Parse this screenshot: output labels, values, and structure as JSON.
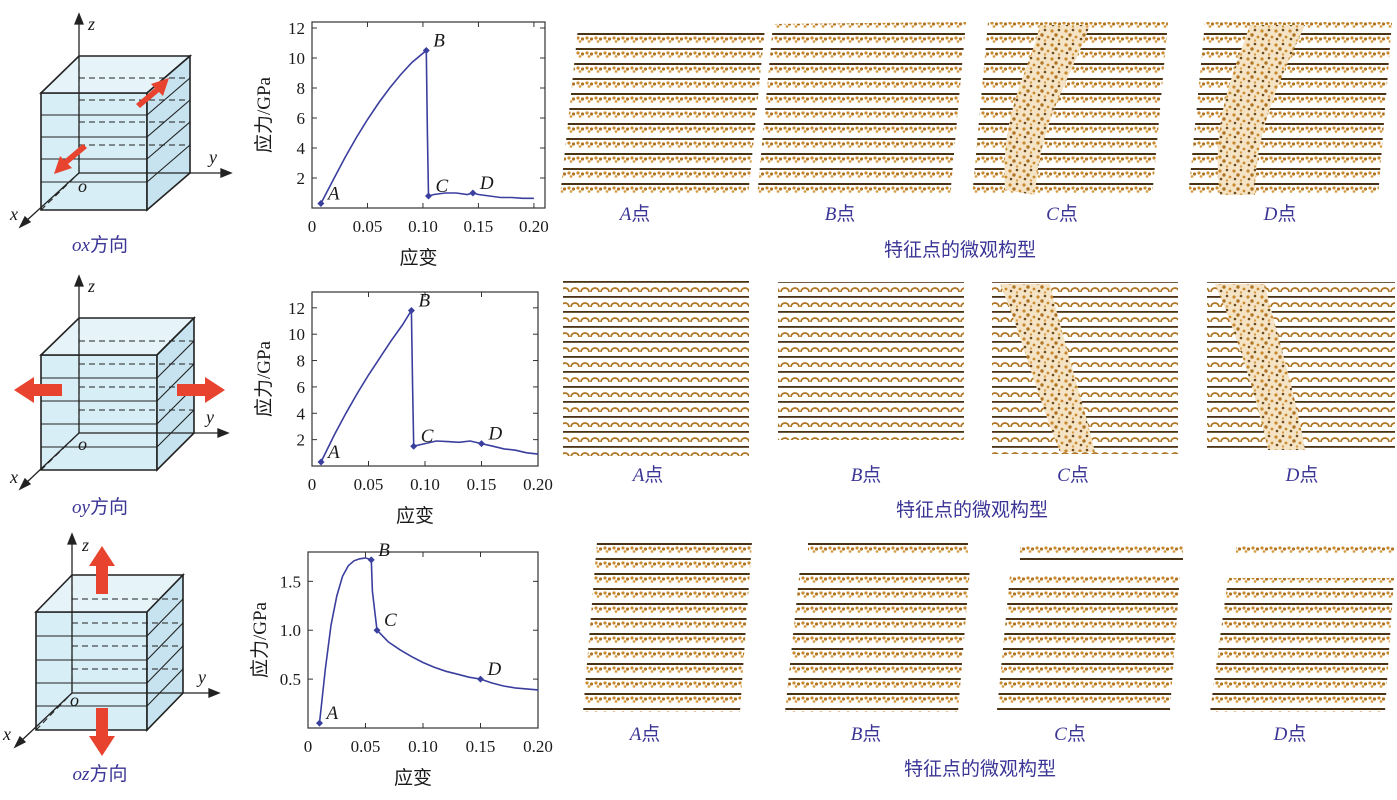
{
  "rows": [
    {
      "direction_prefix": "ox",
      "direction_suffix": "方向",
      "cube_letters": {
        "x": "x",
        "y": "y",
        "z": "z",
        "o": "o"
      },
      "snapshot_caption": "特征点的微观构型",
      "snapshots": [
        {
          "letter": "A",
          "suffix": "点"
        },
        {
          "letter": "B",
          "suffix": "点"
        },
        {
          "letter": "C",
          "suffix": "点"
        },
        {
          "letter": "D",
          "suffix": "点"
        }
      ]
    },
    {
      "direction_prefix": "oy",
      "direction_suffix": "方向",
      "cube_letters": {
        "x": "x",
        "y": "y",
        "z": "z",
        "o": "o"
      },
      "snapshot_caption": "特征点的微观构型",
      "snapshots": [
        {
          "letter": "A",
          "suffix": "点"
        },
        {
          "letter": "B",
          "suffix": "点"
        },
        {
          "letter": "C",
          "suffix": "点"
        },
        {
          "letter": "D",
          "suffix": "点"
        }
      ]
    },
    {
      "direction_prefix": "oz",
      "direction_suffix": "方向",
      "cube_letters": {
        "x": "x",
        "y": "y",
        "z": "z",
        "o": "o"
      },
      "snapshot_caption": "特征点的微观构型",
      "snapshots": [
        {
          "letter": "A",
          "suffix": "点"
        },
        {
          "letter": "B",
          "suffix": "点"
        },
        {
          "letter": "C",
          "suffix": "点"
        },
        {
          "letter": "D",
          "suffix": "点"
        }
      ]
    }
  ],
  "colors": {
    "curve": "#3a3f9e",
    "caption": "#3b3596",
    "arrow": "#e8432e",
    "cube_fill": "#d8eef6",
    "atoms": "#c98a2e",
    "atoms_dark": "#6b4a1e"
  },
  "chart_data": [
    {
      "type": "line",
      "title": "",
      "xlabel": "应变",
      "ylabel": "应力/GPa",
      "xlim": [
        0,
        0.21
      ],
      "ylim": [
        0,
        12.4
      ],
      "xticks": [
        0,
        0.05,
        0.1,
        0.15,
        0.2
      ],
      "xtick_labels": [
        "0",
        "0.05",
        "0.10",
        "0.15",
        "0.20"
      ],
      "yticks": [
        2,
        4,
        6,
        8,
        10,
        12
      ],
      "ytick_labels": [
        "2",
        "4",
        "6",
        "8",
        "10",
        "12"
      ],
      "series": [
        {
          "x": [
            0.008,
            0.02,
            0.03,
            0.04,
            0.05,
            0.06,
            0.07,
            0.08,
            0.09,
            0.103,
            0.104,
            0.105,
            0.11,
            0.12,
            0.13,
            0.14,
            0.145,
            0.15,
            0.16,
            0.17,
            0.18,
            0.19,
            0.2
          ],
          "y": [
            0.3,
            2.0,
            3.4,
            4.7,
            5.9,
            7.0,
            8.0,
            8.9,
            9.7,
            10.5,
            5.0,
            0.8,
            0.9,
            1.0,
            1.0,
            0.9,
            1.0,
            0.9,
            0.8,
            0.7,
            0.7,
            0.65,
            0.65
          ]
        }
      ],
      "points": [
        {
          "label": "A",
          "x": 0.008,
          "y": 0.3
        },
        {
          "label": "B",
          "x": 0.103,
          "y": 10.5
        },
        {
          "label": "C",
          "x": 0.105,
          "y": 0.8
        },
        {
          "label": "D",
          "x": 0.145,
          "y": 1.0
        }
      ]
    },
    {
      "type": "line",
      "title": "",
      "xlabel": "应变",
      "ylabel": "应力/GPa",
      "xlim": [
        0,
        0.2
      ],
      "ylim": [
        0,
        13.2
      ],
      "xticks": [
        0,
        0.05,
        0.1,
        0.15,
        0.2
      ],
      "xtick_labels": [
        "0",
        "0.05",
        "0.10",
        "0.15",
        "0.20"
      ],
      "yticks": [
        2,
        4,
        6,
        8,
        10,
        12
      ],
      "ytick_labels": [
        "2",
        "4",
        "6",
        "8",
        "10",
        "12"
      ],
      "series": [
        {
          "x": [
            0.008,
            0.02,
            0.03,
            0.04,
            0.05,
            0.06,
            0.07,
            0.08,
            0.088,
            0.089,
            0.09,
            0.095,
            0.1,
            0.11,
            0.12,
            0.13,
            0.14,
            0.15,
            0.16,
            0.17,
            0.18,
            0.19,
            0.2
          ],
          "y": [
            0.3,
            2.4,
            4.0,
            5.5,
            6.9,
            8.2,
            9.5,
            10.7,
            11.8,
            6.0,
            1.5,
            1.6,
            1.7,
            1.9,
            1.85,
            1.8,
            1.9,
            1.7,
            1.5,
            1.3,
            1.2,
            1.0,
            0.9
          ]
        }
      ],
      "points": [
        {
          "label": "A",
          "x": 0.008,
          "y": 0.3
        },
        {
          "label": "B",
          "x": 0.088,
          "y": 11.8
        },
        {
          "label": "C",
          "x": 0.09,
          "y": 1.5
        },
        {
          "label": "D",
          "x": 0.15,
          "y": 1.7
        }
      ]
    },
    {
      "type": "line",
      "title": "",
      "xlabel": "应变",
      "ylabel": "应力/GPa",
      "xlim": [
        0,
        0.2
      ],
      "ylim": [
        0,
        1.8
      ],
      "xticks": [
        0,
        0.05,
        0.1,
        0.15,
        0.2
      ],
      "xtick_labels": [
        "0",
        "0.05",
        "0.10",
        "0.15",
        "0.20"
      ],
      "yticks": [
        0.5,
        1.0,
        1.5
      ],
      "ytick_labels": [
        "0.5",
        "1.0",
        "1.5"
      ],
      "series": [
        {
          "x": [
            0.01,
            0.015,
            0.02,
            0.025,
            0.03,
            0.035,
            0.04,
            0.045,
            0.05,
            0.055,
            0.056,
            0.058,
            0.06,
            0.07,
            0.08,
            0.09,
            0.1,
            0.11,
            0.12,
            0.13,
            0.14,
            0.15,
            0.16,
            0.17,
            0.18,
            0.19,
            0.2
          ],
          "y": [
            0.05,
            0.6,
            1.05,
            1.35,
            1.55,
            1.66,
            1.71,
            1.73,
            1.74,
            1.72,
            1.4,
            1.2,
            1.0,
            0.88,
            0.8,
            0.73,
            0.67,
            0.62,
            0.58,
            0.55,
            0.52,
            0.5,
            0.46,
            0.43,
            0.41,
            0.4,
            0.39
          ]
        }
      ],
      "points": [
        {
          "label": "A",
          "x": 0.01,
          "y": 0.05
        },
        {
          "label": "B",
          "x": 0.055,
          "y": 1.72
        },
        {
          "label": "C",
          "x": 0.06,
          "y": 1.0
        },
        {
          "label": "D",
          "x": 0.15,
          "y": 0.5
        }
      ]
    }
  ]
}
